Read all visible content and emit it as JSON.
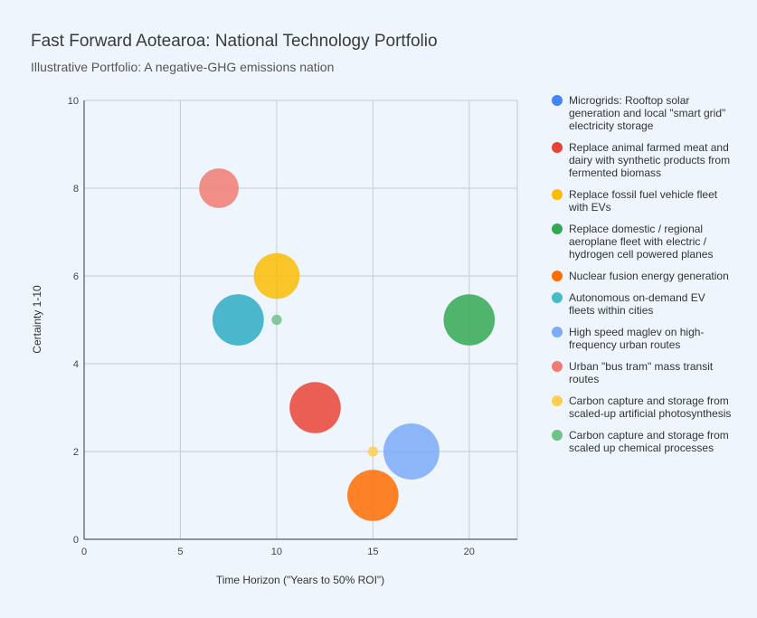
{
  "chart_data": {
    "type": "bubble",
    "title": "Fast Forward Aotearoa: National Technology Portfolio",
    "subtitle": "Illustrative Portfolio: A negative-GHG emissions nation",
    "xlabel": "Time Horizon (\"Years to 50% ROI\")",
    "ylabel": "Certainty 1-10",
    "xlim": [
      0,
      22.5
    ],
    "ylim": [
      0,
      10
    ],
    "xticks": [
      "0",
      "5",
      "10",
      "15",
      "20"
    ],
    "yticks": [
      "0",
      "2",
      "4",
      "6",
      "8",
      "10"
    ],
    "grid": true,
    "legend_position": "right",
    "series": [
      {
        "name": "Microgrids: Rooftop solar generation and local \"smart grid\" electricity storage",
        "color": "#4285f4",
        "x": 8,
        "y": 5,
        "size": 5
      },
      {
        "name": "Replace animal farmed meat and dairy with synthetic products from fermented biomass",
        "color": "#ea4335",
        "x": 12,
        "y": 3,
        "size": 5
      },
      {
        "name": "Replace fossil fuel vehicle fleet with EVs",
        "color": "#fbbc04",
        "x": 10,
        "y": 6,
        "size": 4
      },
      {
        "name": "Replace domestic / regional aeroplane fleet with electric / hydrogen cell powered planes",
        "color": "#34a853",
        "x": 20,
        "y": 5,
        "size": 5
      },
      {
        "name": "Nuclear fusion energy generation",
        "color": "#ff6d01",
        "x": 15,
        "y": 1,
        "size": 5
      },
      {
        "name": "Autonomous on-demand EV fleets within cities",
        "color": "#46bdc6",
        "x": 8,
        "y": 5,
        "size": 5
      },
      {
        "name": "High speed maglev on high-frequency urban routes",
        "color": "#7baaf7",
        "x": 17,
        "y": 2,
        "size": 6
      },
      {
        "name": "Urban \"bus tram\" mass transit routes",
        "color": "#f07b72",
        "x": 7,
        "y": 8,
        "size": 3
      },
      {
        "name": "Carbon capture and storage from scaled-up artificial photosynthesis",
        "color": "#fcd04f",
        "x": 15,
        "y": 2,
        "size": 0.2
      },
      {
        "name": "Carbon capture and storage from scaled up chemical processes",
        "color": "#71c287",
        "x": 10,
        "y": 5,
        "size": 0.2
      }
    ]
  }
}
